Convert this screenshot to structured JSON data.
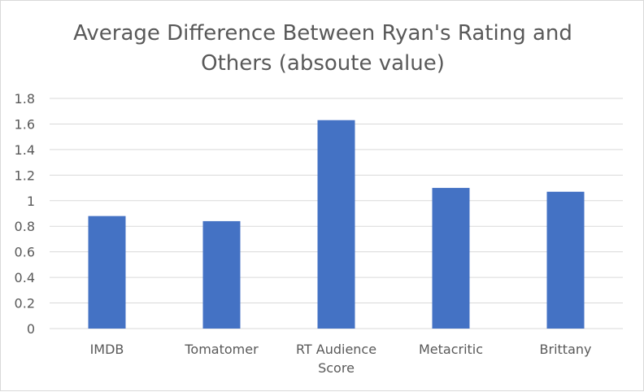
{
  "chart_data": {
    "type": "bar",
    "title_lines": [
      "Average Difference Between Ryan's Rating and",
      "Others (absoute value)"
    ],
    "categories": [
      [
        "IMDB"
      ],
      [
        "Tomatomer"
      ],
      [
        "RT Audience",
        "Score"
      ],
      [
        "Metacritic"
      ],
      [
        "Brittany"
      ]
    ],
    "values": [
      0.88,
      0.84,
      1.63,
      1.1,
      1.07
    ],
    "ylim": [
      0,
      1.8
    ],
    "yticks": [
      "0",
      "0.2",
      "0.4",
      "0.6",
      "0.8",
      "1",
      "1.2",
      "1.4",
      "1.6",
      "1.8"
    ],
    "grid": true,
    "colors": {
      "bar": "#4472c4",
      "grid": "#d9d9d9",
      "text": "#595959"
    }
  }
}
